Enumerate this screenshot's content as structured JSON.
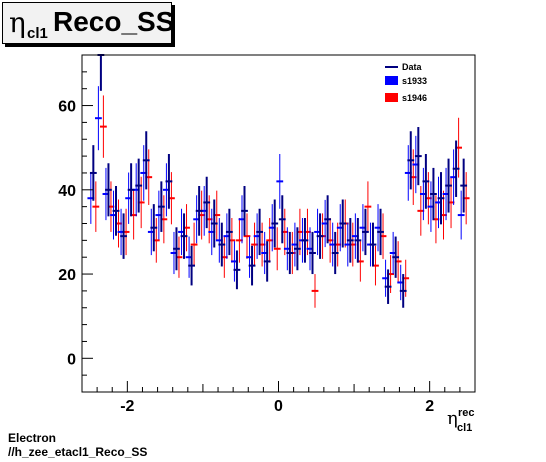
{
  "title": {
    "greek": "η",
    "subscript": "cl1",
    "main": "Reco_SS"
  },
  "footer": {
    "line1": "Electron",
    "line2": "//h_zee_etacl1_Reco_SS"
  },
  "colors": {
    "data": "#000080",
    "s1933": "#0000ff",
    "s1946": "#ff0000",
    "frame": "#000000",
    "title_bg": "#f2f2f2"
  },
  "chart_data": {
    "type": "scatter",
    "xlim": [
      -2.6,
      2.6
    ],
    "ylim": [
      -8,
      72
    ],
    "x_ticks": [
      -2,
      0,
      2
    ],
    "x_tick_labels": [
      "-2",
      "0",
      "2"
    ],
    "y_ticks": [
      0,
      20,
      40,
      60
    ],
    "y_tick_labels": [
      "0",
      "20",
      "40",
      "60"
    ],
    "xlabel": {
      "greek": "η",
      "sup": "rec",
      "sub": "cl1"
    },
    "ylabel": "",
    "grid": false,
    "legend_position": "top-right",
    "x": [
      -2.45,
      -2.35,
      -2.25,
      -2.15,
      -2.05,
      -1.95,
      -1.85,
      -1.75,
      -1.65,
      -1.55,
      -1.45,
      -1.35,
      -1.25,
      -1.15,
      -1.05,
      -0.95,
      -0.85,
      -0.75,
      -0.65,
      -0.55,
      -0.45,
      -0.35,
      -0.25,
      -0.15,
      -0.05,
      0.05,
      0.15,
      0.25,
      0.35,
      0.45,
      0.55,
      0.65,
      0.75,
      0.85,
      0.95,
      1.05,
      1.15,
      1.25,
      1.35,
      1.45,
      1.55,
      1.65,
      1.75,
      1.85,
      1.95,
      2.05,
      2.15,
      2.25,
      2.35,
      2.45
    ],
    "series": [
      {
        "name": "Data",
        "values": [
          44,
          72,
          40,
          35,
          29,
          40,
          41,
          47,
          31,
          36,
          42,
          26,
          29,
          22,
          35,
          37,
          32,
          27,
          30,
          21,
          35,
          22,
          30,
          23,
          32,
          33,
          25,
          26,
          28,
          25,
          29,
          33,
          25,
          32,
          28,
          28,
          30,
          27,
          30,
          17,
          24,
          16,
          47,
          48,
          42,
          39,
          38,
          41,
          45,
          41
        ],
        "errors": [
          6.6,
          8.5,
          6.3,
          5.9,
          5.4,
          6.3,
          6.4,
          6.9,
          5.6,
          6.0,
          6.5,
          5.1,
          5.4,
          4.7,
          5.9,
          6.1,
          5.7,
          5.2,
          5.5,
          4.6,
          5.9,
          4.7,
          5.5,
          4.8,
          5.7,
          5.7,
          5.0,
          5.1,
          5.3,
          5.0,
          5.4,
          5.7,
          5.0,
          5.7,
          5.3,
          5.3,
          5.5,
          5.2,
          5.5,
          4.1,
          4.9,
          4.0,
          6.9,
          6.9,
          6.5,
          6.2,
          6.2,
          6.4,
          6.7,
          6.4
        ]
      },
      {
        "name": "s1933",
        "values": [
          38,
          57,
          39,
          34,
          30,
          38,
          40,
          44,
          30,
          34,
          40,
          25,
          30,
          24,
          33,
          35,
          30,
          28,
          29,
          23,
          33,
          24,
          29,
          25,
          31,
          42,
          26,
          27,
          28,
          26,
          30,
          32,
          27,
          31,
          27,
          29,
          31,
          27,
          31,
          19,
          25,
          18,
          44,
          46,
          39,
          36,
          37,
          39,
          43,
          34
        ],
        "errors": [
          6.1,
          7.6,
          6.2,
          5.8,
          5.5,
          6.1,
          6.3,
          6.6,
          5.5,
          5.8,
          6.3,
          5.0,
          5.5,
          4.9,
          5.7,
          5.9,
          5.5,
          5.3,
          5.4,
          4.8,
          5.7,
          4.9,
          5.4,
          5.0,
          5.6,
          6.5,
          5.1,
          5.2,
          5.3,
          5.1,
          5.5,
          5.6,
          5.2,
          5.6,
          5.2,
          5.4,
          5.6,
          5.2,
          5.6,
          4.4,
          5.0,
          4.2,
          6.6,
          6.8,
          6.2,
          6.0,
          6.1,
          6.2,
          6.6,
          5.8
        ]
      },
      {
        "name": "s1946",
        "values": [
          36,
          55,
          36,
          32,
          30,
          34,
          37,
          43,
          28,
          33,
          38,
          24,
          31,
          27,
          34,
          33,
          34,
          24,
          28,
          28,
          29,
          27,
          27,
          28,
          26,
          30,
          25,
          30,
          30,
          16,
          29,
          28,
          27,
          32,
          27,
          23,
          36,
          22,
          29,
          20,
          23,
          19,
          43,
          35,
          38,
          33,
          34,
          37,
          50,
          38
        ],
        "errors": [
          6.0,
          7.4,
          6.0,
          5.7,
          5.5,
          5.8,
          6.1,
          6.6,
          5.3,
          5.7,
          6.2,
          4.9,
          5.6,
          5.2,
          5.8,
          5.7,
          5.8,
          4.9,
          5.3,
          5.3,
          5.4,
          5.2,
          5.2,
          5.3,
          5.1,
          5.5,
          5.0,
          5.5,
          5.5,
          4.0,
          5.4,
          5.3,
          5.2,
          5.7,
          5.2,
          4.8,
          6.0,
          4.7,
          5.4,
          4.5,
          4.8,
          4.4,
          6.6,
          5.9,
          6.2,
          5.7,
          5.8,
          6.1,
          7.1,
          6.2
        ]
      }
    ]
  }
}
